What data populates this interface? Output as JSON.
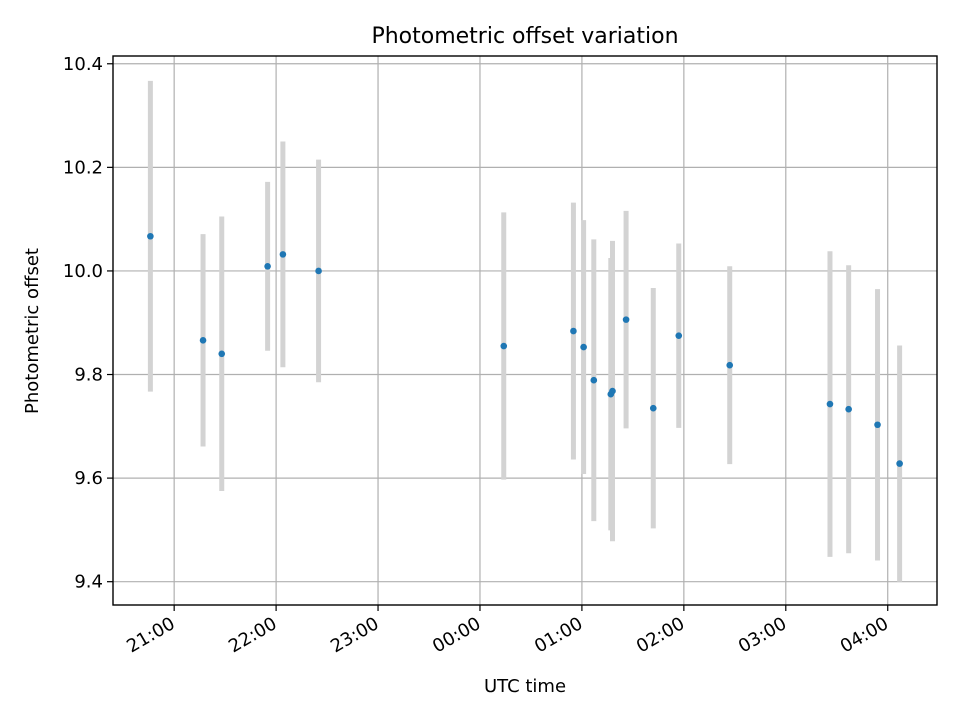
{
  "chart_data": {
    "type": "scatter",
    "title": "Photometric offset variation",
    "xlabel": "UTC time",
    "ylabel": "Photometric offset",
    "x_unit": "UTC time (HH:MM), times after 24:00 fall on the next day",
    "x_ticks": [
      "21:00",
      "22:00",
      "23:00",
      "00:00",
      "01:00",
      "02:00",
      "03:00",
      "04:00"
    ],
    "y_ticks": [
      9.4,
      9.6,
      9.8,
      10.0,
      10.2,
      10.4
    ],
    "xlim": [
      "20:24",
      "04:29"
    ],
    "ylim": [
      9.355,
      10.415
    ],
    "grid": true,
    "marker_color": "#1f77b4",
    "errorbar_color": "#d3d3d3",
    "points": [
      {
        "time": "20:46",
        "y": 10.067,
        "err": 0.3
      },
      {
        "time": "21:17",
        "y": 9.866,
        "err": 0.205
      },
      {
        "time": "21:28",
        "y": 9.84,
        "err": 0.265
      },
      {
        "time": "21:55",
        "y": 10.009,
        "err": 0.163
      },
      {
        "time": "22:04",
        "y": 10.032,
        "err": 0.218
      },
      {
        "time": "22:25",
        "y": 10.0,
        "err": 0.215
      },
      {
        "time": "00:14",
        "y": 9.855,
        "err": 0.258
      },
      {
        "time": "00:55",
        "y": 9.884,
        "err": 0.248
      },
      {
        "time": "01:01",
        "y": 9.853,
        "err": 0.245
      },
      {
        "time": "01:07",
        "y": 9.789,
        "err": 0.272
      },
      {
        "time": "01:17",
        "y": 9.762,
        "err": 0.263
      },
      {
        "time": "01:18",
        "y": 9.768,
        "err": 0.29
      },
      {
        "time": "01:26",
        "y": 9.906,
        "err": 0.21
      },
      {
        "time": "01:42",
        "y": 9.735,
        "err": 0.232
      },
      {
        "time": "01:57",
        "y": 9.875,
        "err": 0.178
      },
      {
        "time": "02:27",
        "y": 9.818,
        "err": 0.191
      },
      {
        "time": "03:26",
        "y": 9.743,
        "err": 0.295
      },
      {
        "time": "03:37",
        "y": 9.733,
        "err": 0.278
      },
      {
        "time": "03:54",
        "y": 9.703,
        "err": 0.262
      },
      {
        "time": "04:07",
        "y": 9.628,
        "err": 0.228
      }
    ]
  }
}
